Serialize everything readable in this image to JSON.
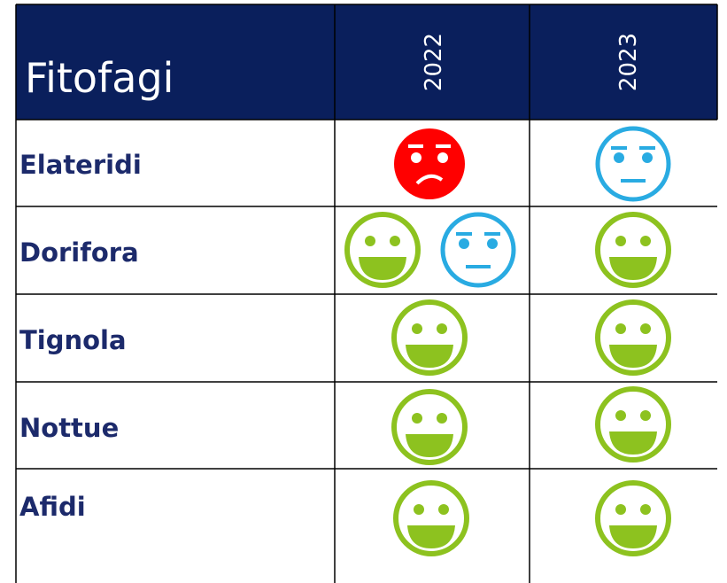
{
  "header": {
    "title": "Fitofagi",
    "columns": [
      "2022",
      "2023"
    ]
  },
  "rows": [
    "Elateridi",
    "Dorifora",
    "Tignola",
    "Nottue",
    "Afidi"
  ]
}
